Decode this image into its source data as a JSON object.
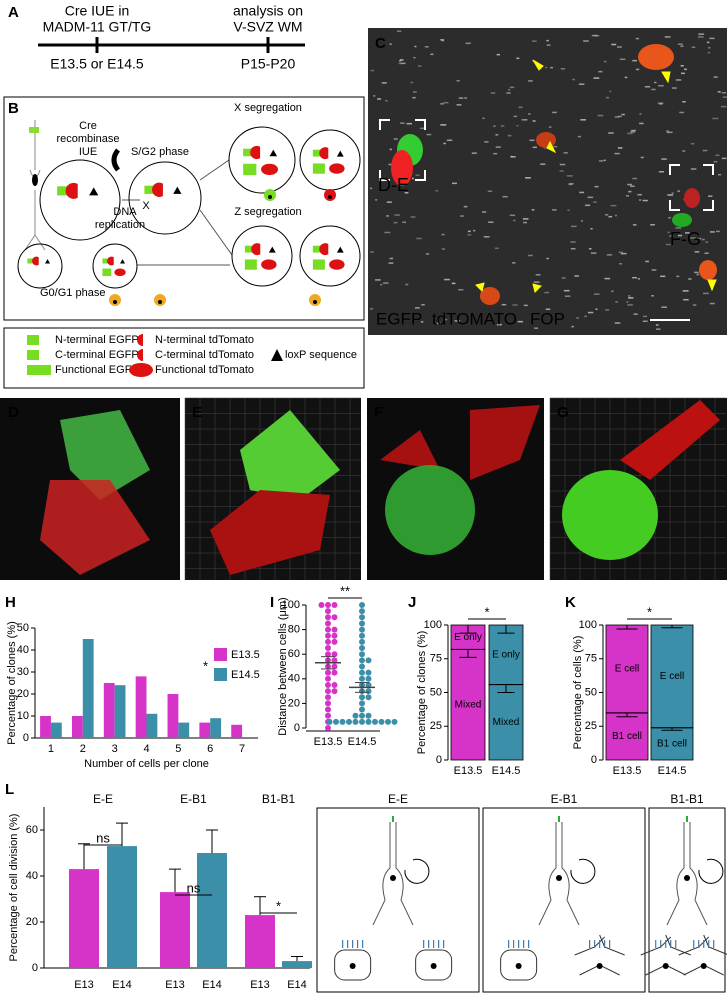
{
  "panel_a": {
    "label": "A",
    "start": [
      "Cre IUE in",
      "MADM-11 GT/TG"
    ],
    "end": [
      "analysis on",
      "V-SVZ WM"
    ],
    "start_time": "E13.5 or E14.5",
    "end_time": "P15-P20"
  },
  "panel_b": {
    "label": "B",
    "cre": [
      "Cre",
      "recombinase",
      "IUE"
    ],
    "s_g2": "S/G2 phase",
    "dna": [
      "DNA",
      "replication"
    ],
    "x_mark": "X",
    "x_seg": "X segregation",
    "z_seg": "Z segregation",
    "g0_g1": "G0/G1 phase"
  },
  "legend": {
    "items": [
      "N-terminal EGFP",
      "C-terminal EGFP",
      "Functional EGFP",
      "N-terminal tdTomato",
      "C-terminal tdTomato",
      "Functional tdTomato",
      "loxP sequence"
    ]
  },
  "panel_c": {
    "label": "C",
    "boxes": [
      "D-E",
      "F-G"
    ],
    "channels": [
      "EGFP",
      "tdTOMATO",
      "FOP"
    ]
  },
  "panels_dg": [
    "D",
    "E",
    "F",
    "G"
  ],
  "chart_data": [
    {
      "type": "bar",
      "label": "H",
      "xlabel": "Number of cells per clone",
      "ylabel": "Percentage of clones (%)",
      "categories": [
        "1",
        "2",
        "3",
        "4",
        "5",
        "6",
        "7"
      ],
      "series": [
        {
          "name": "E13.5",
          "color": "#d633c9",
          "values": [
            10,
            10,
            25,
            28,
            20,
            7,
            6
          ]
        },
        {
          "name": "E14.5",
          "color": "#3b8fa8",
          "values": [
            7,
            45,
            24,
            11,
            7,
            9,
            0
          ]
        }
      ],
      "ylim": [
        0,
        50
      ],
      "yticks": [
        0,
        10,
        20,
        30,
        40,
        50
      ],
      "annotation": "*"
    },
    {
      "type": "dots",
      "label": "I",
      "ylabel": "Distance between cells (μm)",
      "categories": [
        "E13.5",
        "E14.5"
      ],
      "groups": [
        {
          "color": "#d633c9",
          "mean": 53,
          "sem": 5,
          "values": [
            100,
            100,
            100,
            95,
            90,
            90,
            85,
            80,
            80,
            75,
            75,
            70,
            70,
            65,
            60,
            60,
            55,
            55,
            50,
            50,
            45,
            45,
            40,
            35,
            35,
            30,
            30,
            25,
            20,
            15,
            10,
            5,
            0
          ]
        },
        {
          "color": "#3b8fa8",
          "mean": 33,
          "sem": 4,
          "values": [
            100,
            95,
            90,
            85,
            80,
            75,
            70,
            65,
            60,
            55,
            55,
            50,
            45,
            45,
            40,
            40,
            35,
            35,
            30,
            30,
            25,
            25,
            20,
            15,
            10,
            10,
            10,
            5,
            5,
            5,
            5,
            5,
            5,
            5,
            5,
            5,
            5,
            5
          ]
        }
      ],
      "ylim": [
        0,
        100
      ],
      "yticks": [
        0,
        20,
        40,
        60,
        80,
        100
      ],
      "annotation": "**"
    },
    {
      "type": "stacked_bar",
      "label": "J",
      "ylabel": "Percentage of clones (%)",
      "categories": [
        "E13.5",
        "E14.5"
      ],
      "colors": [
        "#d633c9",
        "#3b8fa8"
      ],
      "series": [
        {
          "name": "Mixed",
          "values": [
            82,
            56
          ],
          "errors": [
            6,
            6
          ]
        },
        {
          "name": "E only",
          "values": [
            18,
            44
          ],
          "errors": [
            6,
            6
          ]
        }
      ],
      "ylim": [
        0,
        100
      ],
      "yticks": [
        0,
        25,
        50,
        75,
        100
      ],
      "annotation": "*"
    },
    {
      "type": "stacked_bar",
      "label": "K",
      "ylabel": "Percentage of cells (%)",
      "categories": [
        "E13.5",
        "E14.5"
      ],
      "colors": [
        "#d633c9",
        "#3b8fa8"
      ],
      "series": [
        {
          "name": "B1 cell",
          "values": [
            35,
            24
          ],
          "errors": [
            3,
            2
          ]
        },
        {
          "name": "E cell",
          "values": [
            65,
            76
          ],
          "errors": [
            3,
            2
          ]
        }
      ],
      "ylim": [
        0,
        100
      ],
      "yticks": [
        0,
        25,
        50,
        75,
        100
      ],
      "annotation": "*"
    },
    {
      "type": "grouped_bar",
      "label": "L",
      "ylabel": "Percentage of cell division (%)",
      "groups": [
        "E-E",
        "E-B1",
        "B1-B1"
      ],
      "categories": [
        "E13",
        "E14"
      ],
      "colors": [
        "#d633c9",
        "#3b8fa8"
      ],
      "values": [
        [
          43,
          53
        ],
        [
          33,
          50
        ],
        [
          23,
          3
        ]
      ],
      "errors": [
        [
          11,
          10
        ],
        [
          10,
          10
        ],
        [
          8,
          2
        ]
      ],
      "ylim": [
        0,
        70
      ],
      "yticks": [
        0,
        20,
        40,
        60
      ],
      "annotations": [
        "ns",
        "ns",
        "*"
      ]
    }
  ]
}
